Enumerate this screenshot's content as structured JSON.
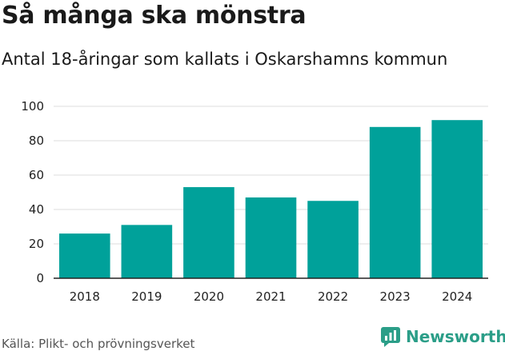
{
  "title": "Så många ska mönstra",
  "subtitle": "Antal 18-åringar som kallats i Oskarshamns kommun",
  "source": "Källa: Plikt- och prövningsverket",
  "brand": {
    "name": "Newsworthy",
    "icon": "bar-chart-icon",
    "color": "#2b9e88"
  },
  "colors": {
    "bar": "#00a19a",
    "grid": "#dddddd",
    "axis": "#222222"
  },
  "chart_data": {
    "type": "bar",
    "categories": [
      "2018",
      "2019",
      "2020",
      "2021",
      "2022",
      "2023",
      "2024"
    ],
    "values": [
      26,
      31,
      53,
      47,
      45,
      88,
      92
    ],
    "ylim": [
      0,
      100
    ],
    "yticks": [
      0,
      20,
      40,
      60,
      80,
      100
    ],
    "xlabel": "",
    "ylabel": "",
    "grid": true
  }
}
